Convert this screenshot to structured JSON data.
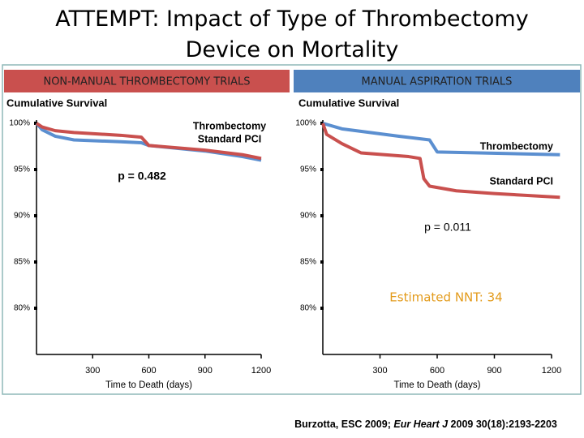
{
  "title": "ATTEMPT: Impact of Type of Thrombectomy Device on Mortality",
  "citation": {
    "authors": "Burzotta, ESC 2009; ",
    "journal": "Eur Heart J",
    "details": " 2009 30(18):2193-2203"
  },
  "chart_data": [
    {
      "type": "line",
      "header": "NON-MANUAL THROMBECTOMY TRIALS",
      "header_color": "#c9504e",
      "y_label": "Cumulative Survival",
      "x_label": "Time to Death (days)",
      "xlim": [
        0,
        1200
      ],
      "ylim": [
        75,
        100
      ],
      "xticks": [
        300,
        600,
        900,
        1200
      ],
      "yticks": [
        {
          "value": 80,
          "label": "80%"
        },
        {
          "value": 85,
          "label": "85%"
        },
        {
          "value": 90,
          "label": "90%"
        },
        {
          "value": 95,
          "label": "95%"
        },
        {
          "value": 100,
          "label": "100%"
        }
      ],
      "series": [
        {
          "name": "Thrombectomy",
          "color": "#5b8fd0",
          "x": [
            0,
            30,
            100,
            200,
            450,
            560,
            600,
            900,
            1100,
            1200
          ],
          "values": [
            100,
            99.3,
            98.6,
            98.2,
            98.0,
            97.9,
            97.6,
            97.0,
            96.4,
            96.0
          ]
        },
        {
          "name": "Standard PCI",
          "color": "#c9504e",
          "x": [
            0,
            30,
            100,
            200,
            450,
            560,
            600,
            900,
            1100,
            1200
          ],
          "values": [
            100,
            99.6,
            99.2,
            99.0,
            98.7,
            98.5,
            97.6,
            97.1,
            96.6,
            96.2
          ]
        }
      ],
      "annotations": [
        {
          "text": "p = 0.482",
          "color": "#000000"
        }
      ]
    },
    {
      "type": "line",
      "header": "MANUAL ASPIRATION TRIALS",
      "header_color": "#4f81bd",
      "y_label": "Cumulative Survival",
      "x_label": "Time to Death (days)",
      "xlim": [
        0,
        1200
      ],
      "ylim": [
        75,
        100
      ],
      "xticks": [
        300,
        600,
        900,
        1200
      ],
      "yticks": [
        {
          "value": 80,
          "label": "80%"
        },
        {
          "value": 85,
          "label": "85%"
        },
        {
          "value": 90,
          "label": "90%"
        },
        {
          "value": 95,
          "label": "95%"
        },
        {
          "value": 100,
          "label": "100%"
        }
      ],
      "series": [
        {
          "name": "Thrombectomy",
          "color": "#5b8fd0",
          "x": [
            0,
            100,
            400,
            560,
            600,
            1244
          ],
          "values": [
            100,
            99.4,
            98.6,
            98.2,
            96.9,
            96.6
          ]
        },
        {
          "name": "Standard PCI",
          "color": "#c9504e",
          "x": [
            0,
            20,
            100,
            200,
            450,
            510,
            530,
            560,
            700,
            900,
            1244
          ],
          "values": [
            100,
            98.8,
            97.8,
            96.8,
            96.4,
            96.2,
            94.0,
            93.2,
            92.7,
            92.4,
            92.0
          ]
        }
      ],
      "annotations": [
        {
          "text": "p = 0.011",
          "color": "#000000"
        },
        {
          "text": "Estimated NNT:  34",
          "color": "#e39b1c"
        }
      ]
    }
  ]
}
